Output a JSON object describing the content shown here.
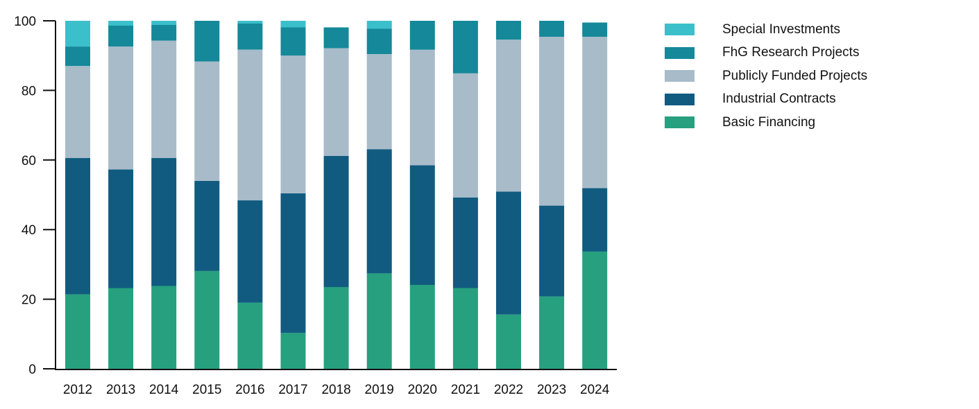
{
  "chart_data": {
    "type": "bar",
    "stacked": true,
    "categories": [
      "2012",
      "2013",
      "2014",
      "2015",
      "2016",
      "2017",
      "2018",
      "2019",
      "2020",
      "2021",
      "2022",
      "2023",
      "2024"
    ],
    "series": [
      {
        "name": "Basic Financing",
        "color": "#26a07f",
        "values": [
          21.4,
          23.2,
          23.8,
          28.1,
          19.0,
          10.3,
          23.5,
          27.4,
          24.1,
          23.2,
          15.6,
          20.8,
          33.7
        ]
      },
      {
        "name": "Industrial Contracts",
        "color": "#115b80",
        "values": [
          39.2,
          34.1,
          36.8,
          25.9,
          29.4,
          40.1,
          37.7,
          35.7,
          34.4,
          26.0,
          35.3,
          26.1,
          18.2
        ]
      },
      {
        "name": "Publicly Funded Projects",
        "color": "#a8bbc9",
        "values": [
          26.4,
          35.3,
          33.7,
          34.3,
          43.3,
          39.6,
          30.9,
          27.3,
          33.2,
          35.7,
          43.7,
          48.5,
          43.5
        ]
      },
      {
        "name": "FhG Research Projects",
        "color": "#158899",
        "values": [
          5.6,
          6.0,
          4.5,
          11.7,
          7.5,
          8.1,
          6.0,
          7.3,
          8.3,
          15.1,
          5.4,
          4.6,
          4.1
        ]
      },
      {
        "name": "Special Investments",
        "color": "#3bbfca",
        "values": [
          7.4,
          1.4,
          1.2,
          0.0,
          0.8,
          1.9,
          0.0,
          2.3,
          0.0,
          0.0,
          0.0,
          0.0,
          0.0
        ]
      }
    ],
    "legend_order": [
      "Special Investments",
      "FhG Research Projects",
      "Publicly Funded Projects",
      "Industrial Contracts",
      "Basic Financing"
    ],
    "ylim": [
      0,
      100
    ],
    "yticks": [
      "0",
      "20",
      "40",
      "60",
      "80",
      "100"
    ],
    "xlabel": "",
    "ylabel": "",
    "legend_position": "right",
    "grid": false
  }
}
